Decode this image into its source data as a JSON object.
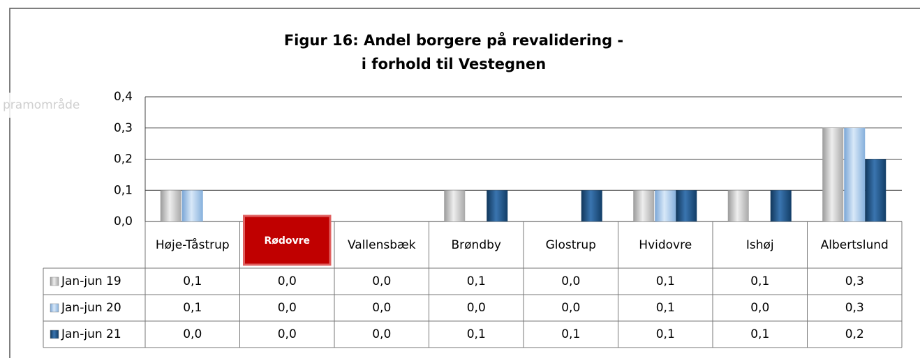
{
  "tooltip": "pramområde",
  "chart_data": {
    "type": "bar",
    "title": [
      "Figur 16: Andel borgere på revalidering -",
      "i forhold til Vestegnen"
    ],
    "categories": [
      "Høje-Tåstrup",
      "Rødovre",
      "Vallensbæk",
      "Brøndby",
      "Glostrup",
      "Hvidovre",
      "Ishøj",
      "Albertslund"
    ],
    "series": [
      {
        "name": "Jan-jun 19",
        "color": "#c4c4c4",
        "values": [
          0.1,
          0,
          0,
          0.1,
          0,
          0.1,
          0.1,
          0.3
        ],
        "value_labels": [
          "0,1",
          "0,0",
          "0,0",
          "0,1",
          "0,0",
          "0,1",
          "0,1",
          "0,3"
        ]
      },
      {
        "name": "Jan-jun 20",
        "color": "#9dc3e6",
        "values": [
          0.1,
          0,
          0,
          0,
          0,
          0.1,
          0,
          0.3
        ],
        "value_labels": [
          "0,1",
          "0,0",
          "0,0",
          "0,0",
          "0,0",
          "0,1",
          "0,0",
          "0,3"
        ]
      },
      {
        "name": "Jan-jun 21",
        "color": "#1f4e79",
        "values": [
          0,
          0,
          0,
          0.1,
          0.1,
          0.1,
          0.1,
          0.2
        ],
        "value_labels": [
          "0,0",
          "0,0",
          "0,0",
          "0,1",
          "0,1",
          "0,1",
          "0,1",
          "0,2"
        ]
      }
    ],
    "ylim": [
      0,
      0.4
    ],
    "yticks": [
      {
        "value": 0,
        "label": "0,0"
      },
      {
        "value": 0.1,
        "label": "0,1"
      },
      {
        "value": 0.2,
        "label": "0,2"
      },
      {
        "value": 0.3,
        "label": "0,3"
      },
      {
        "value": 0.4,
        "label": "0,4"
      }
    ],
    "grid": true
  }
}
